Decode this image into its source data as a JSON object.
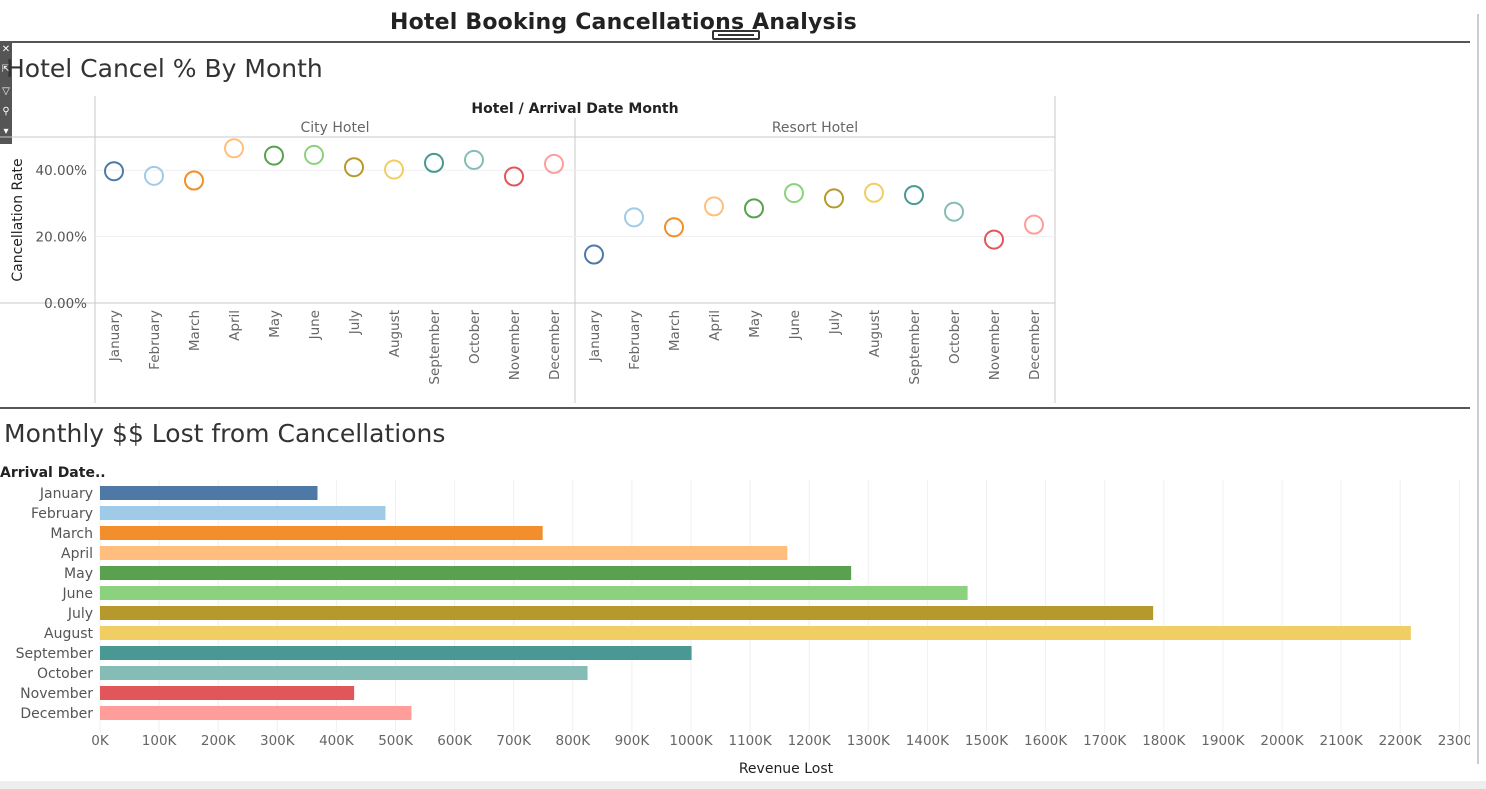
{
  "dashboard": {
    "title": "Hotel Booking Cancellations Analysis"
  },
  "toolbar": {
    "icons": [
      "close-icon",
      "popout-icon",
      "filter-icon",
      "pin-icon",
      "dropdown-icon"
    ]
  },
  "sheet1": {
    "title": "Hotel Cancel % By Month",
    "header": "Hotel  /  Arrival Date Month",
    "ylabel": "Cancellation Rate",
    "yticks": [
      "0.00%",
      "20.00%",
      "40.00%"
    ],
    "panes": [
      "City Hotel",
      "Resort Hotel"
    ]
  },
  "sheet2": {
    "title": "Monthly $$ Lost from Cancellations",
    "row_header": "Arrival Date..",
    "xlabel": "Revenue Lost",
    "xticks": [
      "0K",
      "100K",
      "200K",
      "300K",
      "400K",
      "500K",
      "600K",
      "700K",
      "800K",
      "900K",
      "1000K",
      "1100K",
      "1200K",
      "1300K",
      "1400K",
      "1500K",
      "1600K",
      "1700K",
      "1800K",
      "1900K",
      "2000K",
      "2100K",
      "2200K",
      "2300K"
    ]
  },
  "colors": {
    "January": "#4e79a7",
    "February": "#a0cbe8",
    "March": "#f28e2b",
    "April": "#ffbe7d",
    "May": "#59a14f",
    "June": "#8cd17d",
    "July": "#b6992d",
    "August": "#f1ce63",
    "September": "#499894",
    "October": "#86bcb6",
    "November": "#e15759",
    "December": "#ff9d9a"
  },
  "chart_data": [
    {
      "type": "scatter",
      "title": "Hotel Cancel % By Month",
      "xlabel": "Hotel / Arrival Date Month",
      "ylabel": "Cancellation Rate",
      "ylim": [
        0,
        50
      ],
      "grid": true,
      "categories": [
        "January",
        "February",
        "March",
        "April",
        "May",
        "June",
        "July",
        "August",
        "September",
        "October",
        "November",
        "December"
      ],
      "series": [
        {
          "name": "City Hotel",
          "values": [
            39.7,
            38.3,
            36.9,
            46.6,
            44.4,
            44.6,
            40.9,
            40.2,
            42.2,
            43.1,
            38.1,
            41.9
          ]
        },
        {
          "name": "Resort Hotel",
          "values": [
            14.6,
            25.8,
            22.8,
            29.1,
            28.5,
            33.1,
            31.5,
            33.2,
            32.5,
            27.5,
            19.1,
            23.6
          ]
        }
      ]
    },
    {
      "type": "bar",
      "orientation": "horizontal",
      "title": "Monthly $$ Lost from Cancellations",
      "ylabel": "Arrival Date..",
      "xlabel": "Revenue Lost",
      "xlim": [
        0,
        2300000
      ],
      "grid": true,
      "categories": [
        "January",
        "February",
        "March",
        "April",
        "May",
        "June",
        "July",
        "August",
        "September",
        "October",
        "November",
        "December"
      ],
      "values": [
        368000,
        483000,
        749000,
        1163000,
        1271000,
        1468000,
        1782000,
        2218000,
        1001000,
        825000,
        430000,
        527000
      ]
    }
  ]
}
